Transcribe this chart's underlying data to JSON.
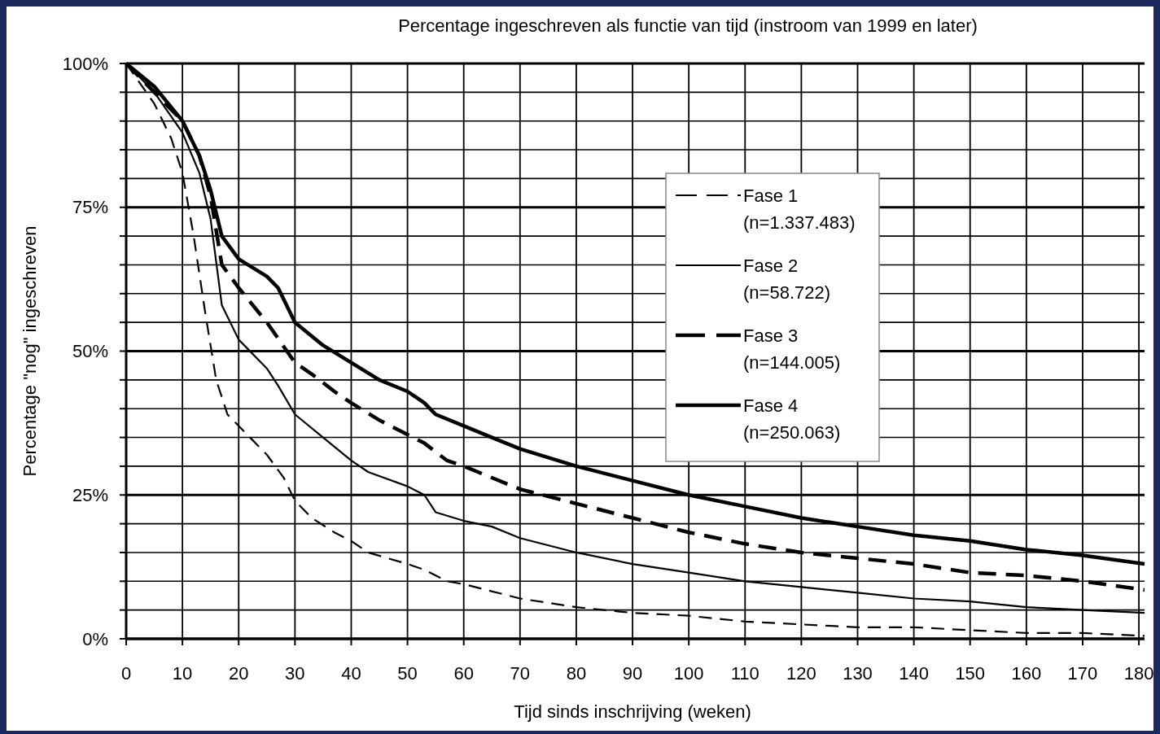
{
  "chart_data": {
    "type": "line",
    "title": "Percentage ingeschreven als functie van tijd (instroom van 1999 en later)",
    "xlabel": "Tijd sinds inschrijving (weken)",
    "ylabel": "Percentage \"nog\" ingeschreven",
    "xlim": [
      0,
      181
    ],
    "xticks": [
      0,
      10,
      20,
      30,
      40,
      50,
      60,
      70,
      80,
      90,
      100,
      110,
      120,
      130,
      140,
      150,
      160,
      170,
      180
    ],
    "ylim": [
      0,
      100
    ],
    "yticks": [
      {
        "value": 0,
        "label": "0%"
      },
      {
        "value": 5,
        "label": null
      },
      {
        "value": 10,
        "label": null
      },
      {
        "value": 15,
        "label": null
      },
      {
        "value": 20,
        "label": null
      },
      {
        "value": 25,
        "label": "25%"
      },
      {
        "value": 30,
        "label": null
      },
      {
        "value": 35,
        "label": null
      },
      {
        "value": 40,
        "label": null
      },
      {
        "value": 45,
        "label": null
      },
      {
        "value": 50,
        "label": "50%"
      },
      {
        "value": 55,
        "label": null
      },
      {
        "value": 60,
        "label": null
      },
      {
        "value": 65,
        "label": null
      },
      {
        "value": 70,
        "label": null
      },
      {
        "value": 75,
        "label": "75%"
      },
      {
        "value": 80,
        "label": null
      },
      {
        "value": 85,
        "label": null
      },
      {
        "value": 90,
        "label": null
      },
      {
        "value": 95,
        "label": null
      },
      {
        "value": 100,
        "label": "100%"
      }
    ],
    "grid": true,
    "legend": "top right",
    "series": [
      {
        "name": "Fase 1\n(n=1.337.483)",
        "color": "#000000",
        "line_style": "dashed",
        "x": [
          0,
          5,
          8,
          10,
          12,
          14,
          16,
          18,
          20,
          25,
          28,
          30,
          33,
          37,
          40,
          43,
          50,
          53,
          57,
          60,
          70,
          80,
          90,
          100,
          110,
          120,
          130,
          140,
          150,
          160,
          170,
          181
        ],
        "values": [
          100,
          93,
          87,
          81,
          70,
          57,
          45,
          39,
          37,
          32,
          28,
          24,
          21,
          18.5,
          17,
          15,
          13,
          12,
          10,
          9.5,
          7,
          5.5,
          4.5,
          4,
          3,
          2.5,
          2,
          2,
          1.5,
          1,
          1,
          0.5
        ]
      },
      {
        "name": "Fase 2\n(n=58.722)",
        "color": "#000000",
        "line_style": "solid",
        "x": [
          0,
          5,
          10,
          13,
          15,
          17,
          20,
          25,
          27,
          30,
          35,
          40,
          43,
          50,
          53,
          55,
          60,
          65,
          70,
          80,
          90,
          100,
          110,
          120,
          130,
          140,
          150,
          160,
          170,
          181
        ],
        "values": [
          100,
          95,
          88,
          81,
          73,
          58,
          52,
          47,
          44,
          39,
          35,
          31,
          29,
          26.5,
          25,
          22,
          20.5,
          19.5,
          17.5,
          15,
          13,
          11.5,
          10,
          9,
          8,
          7,
          6.5,
          5.5,
          5,
          4.5
        ]
      },
      {
        "name": "Fase 3\n(n=144.005)",
        "color": "#000000",
        "line_style": "dashed",
        "x": [
          0,
          5,
          10,
          13,
          15,
          17,
          20,
          25,
          30,
          33,
          37,
          40,
          45,
          50,
          53,
          57,
          60,
          65,
          70,
          80,
          90,
          100,
          110,
          120,
          130,
          140,
          150,
          160,
          170,
          181
        ],
        "values": [
          100,
          95,
          90,
          84,
          77,
          65,
          61,
          55,
          48,
          46,
          43,
          41,
          38,
          35.5,
          34,
          31,
          30,
          28,
          26,
          23.5,
          21,
          18.5,
          16.5,
          15,
          14,
          13,
          11.5,
          11,
          10,
          8.5
        ]
      },
      {
        "name": "Fase 4\n(n=250.063)",
        "color": "#000000",
        "line_style": "solid",
        "x": [
          0,
          5,
          10,
          13,
          15,
          17,
          20,
          25,
          27,
          30,
          35,
          40,
          45,
          50,
          53,
          55,
          60,
          65,
          70,
          80,
          90,
          100,
          110,
          120,
          130,
          140,
          150,
          160,
          170,
          181
        ],
        "values": [
          100,
          96,
          90,
          84,
          78,
          70,
          66,
          63,
          61,
          55,
          51,
          48,
          45,
          43,
          41,
          39,
          37,
          35,
          33,
          30,
          27.5,
          25,
          23,
          21,
          19.5,
          18,
          17,
          15.5,
          14.5,
          13
        ]
      }
    ]
  }
}
